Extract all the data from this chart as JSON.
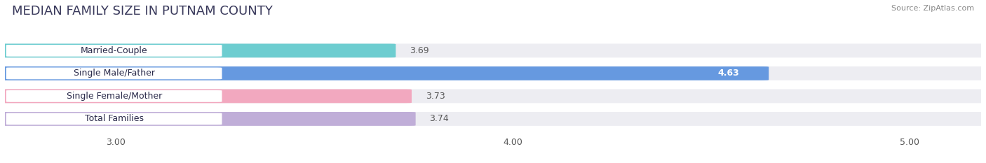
{
  "title": "MEDIAN FAMILY SIZE IN PUTNAM COUNTY",
  "source": "Source: ZipAtlas.com",
  "categories": [
    "Married-Couple",
    "Single Male/Father",
    "Single Female/Mother",
    "Total Families"
  ],
  "values": [
    3.69,
    4.63,
    3.73,
    3.74
  ],
  "bar_colors": [
    "#6dcdd0",
    "#6699e0",
    "#f2a8bf",
    "#c0aed8"
  ],
  "label_colors": [
    "#333333",
    "#ffffff",
    "#333333",
    "#333333"
  ],
  "xlim": [
    2.72,
    5.18
  ],
  "xmin": 2.72,
  "xticks": [
    3.0,
    4.0,
    5.0
  ],
  "xtick_labels": [
    "3.00",
    "4.00",
    "5.00"
  ],
  "bar_height": 0.58,
  "background_color": "#ffffff",
  "bar_background_color": "#ededf2",
  "title_fontsize": 13,
  "label_fontsize": 9,
  "value_fontsize": 9,
  "title_color": "#3a3a5c"
}
